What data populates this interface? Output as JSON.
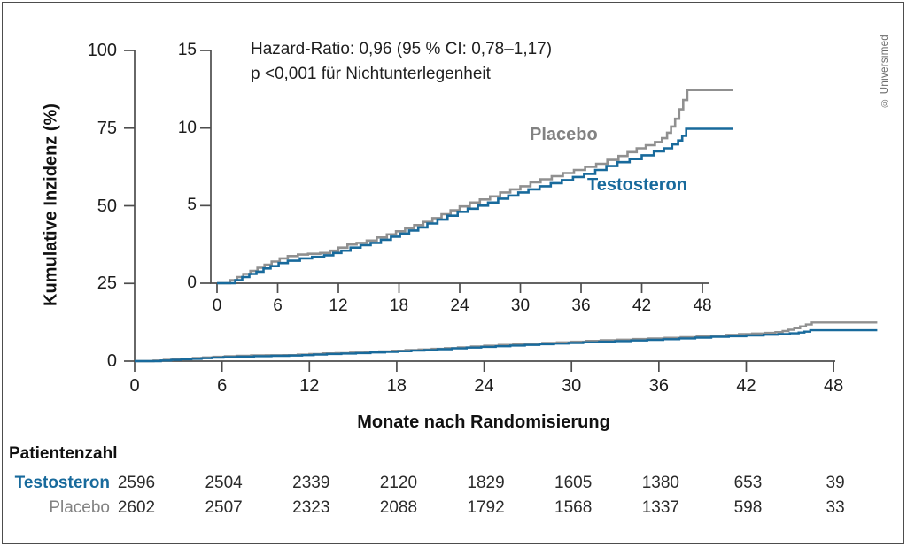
{
  "credit": "© Universimed",
  "colors": {
    "testosteron": "#186a9c",
    "placebo_line": "#909090",
    "placebo_text": "#828282",
    "axis": "#4d4d4d",
    "frame_border": "#4d4d4d"
  },
  "chart_data": {
    "type": "line",
    "subtype": "step-cumulative-incidence (Kaplan-Meier style, with zoom inset)",
    "title": "",
    "xlabel": "Monate nach Randomisierung",
    "ylabel": "Kumulative Inzidenz (%)",
    "annotation": [
      "Hazard-Ratio: 0,96 (95 % CI: 0,78–1,17)",
      "p <0,001 für Nichtunterlegenheit"
    ],
    "legend_position": "inline labels next to curves inside inset",
    "grid": false,
    "main_axis": {
      "xticks": [
        0,
        6,
        12,
        18,
        24,
        30,
        36,
        42,
        48
      ],
      "yticks": [
        0,
        25,
        50,
        75,
        100
      ],
      "xlim": [
        0,
        48
      ],
      "ylim": [
        0,
        100
      ]
    },
    "inset_axis": {
      "xticks": [
        0,
        6,
        12,
        18,
        24,
        30,
        36,
        42,
        48
      ],
      "yticks": [
        0,
        5,
        10,
        15
      ],
      "xlim": [
        0,
        48
      ],
      "ylim": [
        0,
        15
      ]
    },
    "series": [
      {
        "name": "Placebo",
        "color": "#909090",
        "final_value": 12.45,
        "points": [
          [
            0,
            0
          ],
          [
            1.3,
            0.2
          ],
          [
            2.0,
            0.4
          ],
          [
            2.6,
            0.6
          ],
          [
            3.3,
            0.8
          ],
          [
            4.0,
            1.0
          ],
          [
            4.7,
            1.2
          ],
          [
            5.4,
            1.4
          ],
          [
            6.2,
            1.6
          ],
          [
            7.0,
            1.75
          ],
          [
            8.0,
            1.85
          ],
          [
            9.0,
            1.9
          ],
          [
            10.2,
            1.95
          ],
          [
            11.2,
            2.1
          ],
          [
            12.0,
            2.3
          ],
          [
            12.9,
            2.5
          ],
          [
            13.8,
            2.6
          ],
          [
            14.8,
            2.75
          ],
          [
            15.8,
            2.95
          ],
          [
            16.8,
            3.15
          ],
          [
            17.7,
            3.35
          ],
          [
            18.6,
            3.55
          ],
          [
            19.5,
            3.75
          ],
          [
            20.4,
            3.95
          ],
          [
            21.3,
            4.2
          ],
          [
            22.2,
            4.45
          ],
          [
            23.1,
            4.7
          ],
          [
            24.0,
            4.95
          ],
          [
            25.0,
            5.2
          ],
          [
            26.0,
            5.4
          ],
          [
            27.0,
            5.6
          ],
          [
            28.0,
            5.85
          ],
          [
            29.0,
            6.05
          ],
          [
            30.0,
            6.25
          ],
          [
            31.0,
            6.5
          ],
          [
            32.0,
            6.7
          ],
          [
            33.1,
            6.9
          ],
          [
            34.2,
            7.1
          ],
          [
            35.3,
            7.3
          ],
          [
            36.4,
            7.5
          ],
          [
            37.5,
            7.7
          ],
          [
            38.6,
            7.95
          ],
          [
            39.7,
            8.2
          ],
          [
            40.6,
            8.45
          ],
          [
            41.5,
            8.7
          ],
          [
            42.4,
            8.9
          ],
          [
            43.3,
            9.1
          ],
          [
            44.0,
            9.35
          ],
          [
            44.5,
            9.7
          ],
          [
            44.9,
            10.1
          ],
          [
            45.3,
            10.6
          ],
          [
            45.7,
            11.2
          ],
          [
            46.1,
            11.8
          ],
          [
            46.5,
            12.45
          ],
          [
            51,
            12.45
          ]
        ]
      },
      {
        "name": "Testosteron",
        "color": "#186a9c",
        "final_value": 9.95,
        "points": [
          [
            0,
            0
          ],
          [
            1.8,
            0.2
          ],
          [
            2.5,
            0.4
          ],
          [
            3.2,
            0.6
          ],
          [
            3.9,
            0.75
          ],
          [
            4.6,
            0.95
          ],
          [
            5.3,
            1.1
          ],
          [
            6.1,
            1.3
          ],
          [
            7.0,
            1.45
          ],
          [
            8.2,
            1.6
          ],
          [
            9.4,
            1.7
          ],
          [
            10.6,
            1.8
          ],
          [
            11.5,
            1.95
          ],
          [
            12.3,
            2.1
          ],
          [
            13.2,
            2.3
          ],
          [
            14.2,
            2.45
          ],
          [
            15.2,
            2.6
          ],
          [
            16.2,
            2.8
          ],
          [
            17.2,
            3.0
          ],
          [
            18.1,
            3.2
          ],
          [
            19.0,
            3.4
          ],
          [
            19.9,
            3.6
          ],
          [
            20.8,
            3.85
          ],
          [
            21.8,
            4.1
          ],
          [
            22.8,
            4.35
          ],
          [
            23.8,
            4.6
          ],
          [
            24.8,
            4.8
          ],
          [
            25.8,
            5.0
          ],
          [
            26.8,
            5.2
          ],
          [
            27.8,
            5.45
          ],
          [
            28.8,
            5.65
          ],
          [
            29.8,
            5.85
          ],
          [
            30.8,
            6.05
          ],
          [
            31.9,
            6.25
          ],
          [
            33.0,
            6.45
          ],
          [
            34.1,
            6.65
          ],
          [
            35.2,
            6.85
          ],
          [
            36.3,
            7.05
          ],
          [
            37.4,
            7.3
          ],
          [
            38.5,
            7.55
          ],
          [
            39.6,
            7.8
          ],
          [
            40.8,
            8.0
          ],
          [
            42.0,
            8.25
          ],
          [
            43.2,
            8.5
          ],
          [
            44.2,
            8.7
          ],
          [
            45.0,
            8.95
          ],
          [
            45.6,
            9.2
          ],
          [
            46.0,
            9.5
          ],
          [
            46.4,
            9.95
          ],
          [
            51,
            9.95
          ]
        ]
      }
    ],
    "risk_table": {
      "title": "Patientenzahl",
      "time_points": [
        0,
        6,
        12,
        18,
        24,
        30,
        36,
        42,
        48
      ],
      "rows": [
        {
          "name": "Testosteron",
          "color": "#186a9c",
          "bold": true,
          "counts": [
            2596,
            2504,
            2339,
            2120,
            1829,
            1605,
            1380,
            653,
            39
          ]
        },
        {
          "name": "Placebo",
          "color": "#828282",
          "bold": false,
          "counts": [
            2602,
            2507,
            2323,
            2088,
            1792,
            1568,
            1337,
            598,
            33
          ]
        }
      ]
    }
  }
}
